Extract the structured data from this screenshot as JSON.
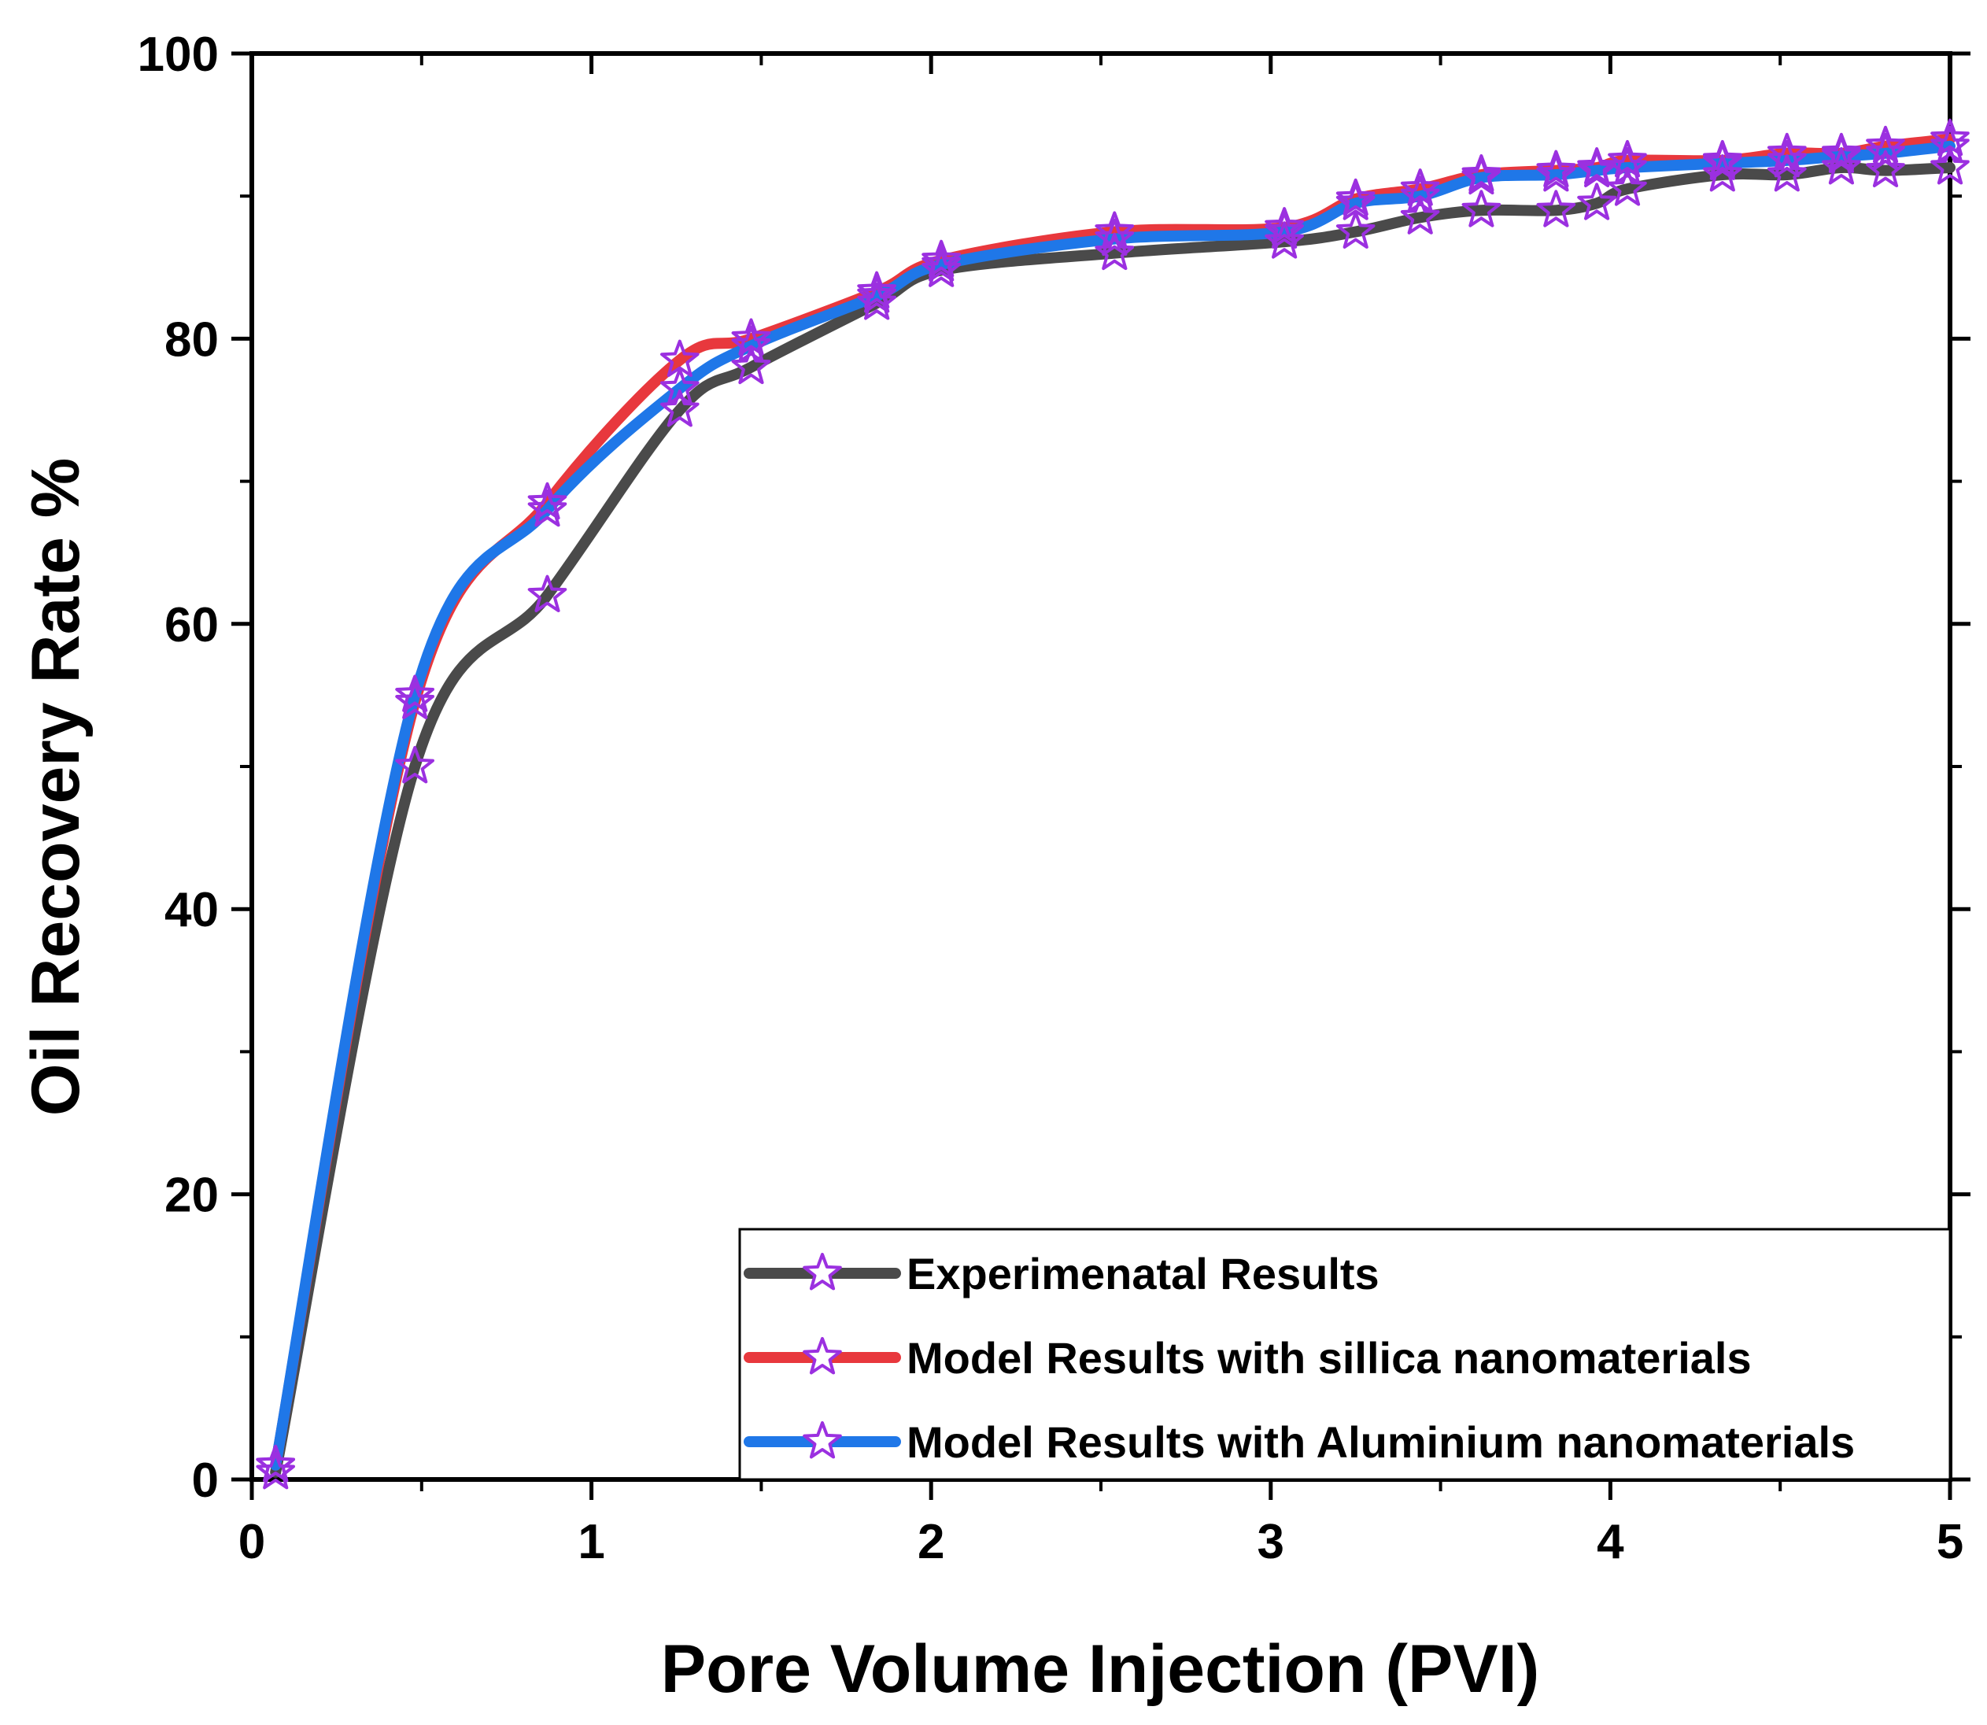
{
  "chart_data": {
    "type": "line",
    "xlabel": "Pore Volume Injection (PVI)",
    "ylabel": "Oil Recovery Rate %",
    "xlim": [
      0,
      5
    ],
    "ylim": [
      0,
      100
    ],
    "xticks": [
      0,
      1,
      2,
      3,
      4,
      5
    ],
    "yticks": [
      0,
      20,
      40,
      60,
      80,
      100
    ],
    "grid": false,
    "legend_position": "bottom-right",
    "marker": "star",
    "marker_color": "#9b30e0",
    "series": [
      {
        "name": "Experimenatal Results",
        "color": "#4a4a4a",
        "x": [
          0.07,
          0.48,
          0.87,
          1.26,
          1.47,
          1.84,
          2.03,
          2.54,
          3.04,
          3.25,
          3.44,
          3.62,
          3.84,
          3.96,
          4.05,
          4.33,
          4.52,
          4.68,
          4.81,
          5.0
        ],
        "y": [
          0.5,
          50,
          62,
          75,
          78,
          82.5,
          84.8,
          86,
          86.8,
          87.5,
          88.5,
          89,
          89,
          89.5,
          90.5,
          91.5,
          91.5,
          92,
          91.8,
          92
        ]
      },
      {
        "name": "Model Results with sillica nanomaterials",
        "color": "#e8383d",
        "x": [
          0.07,
          0.48,
          0.87,
          1.26,
          1.47,
          1.84,
          2.03,
          2.54,
          3.04,
          3.25,
          3.44,
          3.62,
          3.84,
          3.96,
          4.05,
          4.33,
          4.52,
          4.68,
          4.81,
          5.0
        ],
        "y": [
          1,
          54.5,
          68.5,
          78.5,
          80,
          83.3,
          85.5,
          87.5,
          87.8,
          89.8,
          90.5,
          91.5,
          91.8,
          92,
          92.5,
          92.5,
          93,
          93,
          93.5,
          94
        ]
      },
      {
        "name": "Model Results with Aluminium nanomaterials",
        "color": "#1f77e8",
        "x": [
          0.07,
          0.48,
          0.87,
          1.26,
          1.47,
          1.84,
          2.03,
          2.54,
          3.04,
          3.25,
          3.44,
          3.62,
          3.84,
          3.96,
          4.05,
          4.33,
          4.52,
          4.68,
          4.81,
          5.0
        ],
        "y": [
          1,
          55,
          68,
          76.5,
          79.5,
          83,
          85.2,
          87,
          87.5,
          89.5,
          90,
          91.3,
          91.5,
          91.8,
          92,
          92.3,
          92.5,
          92.8,
          93,
          93.5
        ]
      }
    ]
  }
}
